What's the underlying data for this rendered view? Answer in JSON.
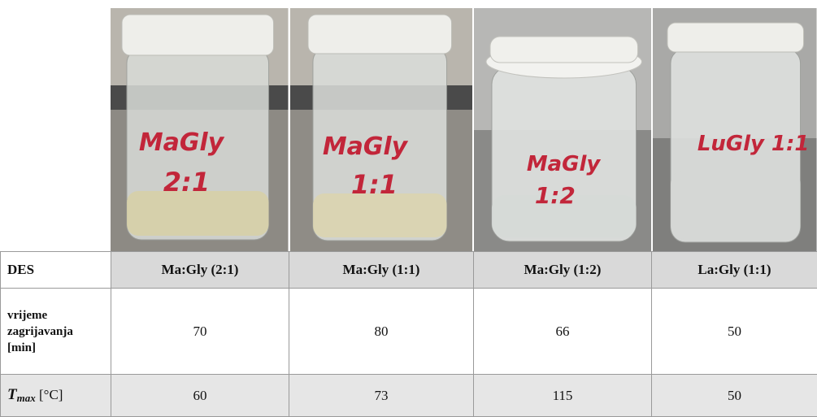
{
  "photos": [
    {
      "jar_label_line1": "MaGly",
      "jar_label_line2": "2:1"
    },
    {
      "jar_label_line1": "MaGly",
      "jar_label_line2": "1:1"
    },
    {
      "jar_label_line1": "MaGly",
      "jar_label_line2": "1:2"
    },
    {
      "jar_label_line1": "LuGly 1:1",
      "jar_label_line2": ""
    }
  ],
  "table": {
    "header_label": "DES",
    "columns": [
      "Ma:Gly (2:1)",
      "Ma:Gly (1:1)",
      "Ma:Gly (1:2)",
      "La:Gly (1:1)"
    ],
    "heating_label_line1": "vrijeme",
    "heating_label_line2": "zagrijavanja",
    "heating_label_line3": "[min]",
    "heating_values": [
      "70",
      "80",
      "66",
      "50"
    ],
    "tmax_symbol": "T",
    "tmax_subscript": "max",
    "tmax_unit": "[°C]",
    "tmax_values": [
      "60",
      "73",
      "115",
      "50"
    ]
  }
}
